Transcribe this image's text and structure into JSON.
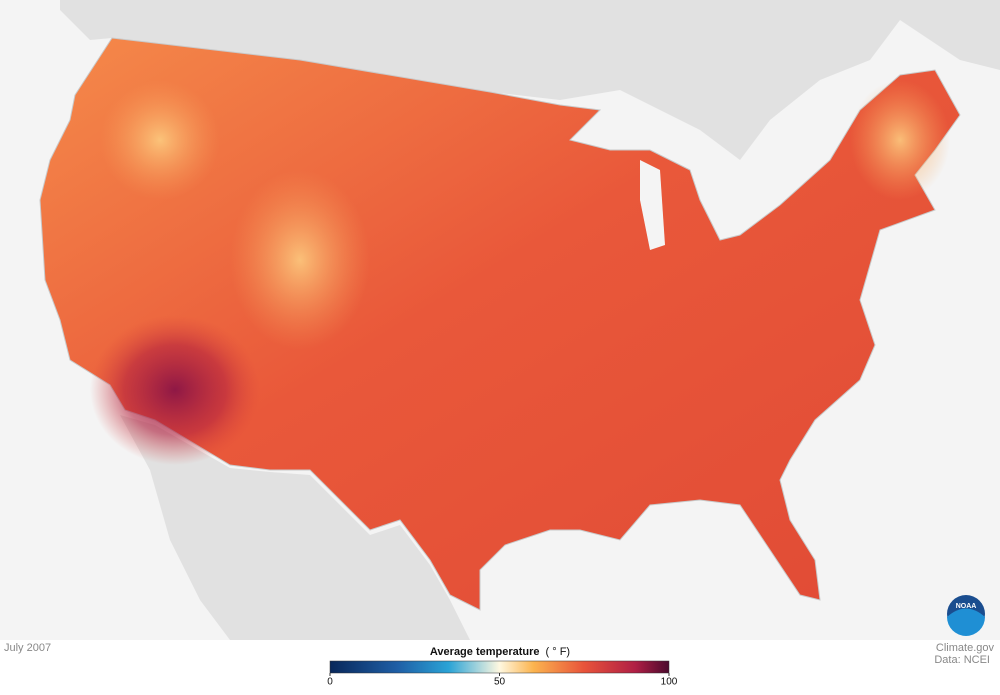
{
  "date": "July 2007",
  "legend": {
    "title": "Average temperature",
    "unit": "( ° F)",
    "lim": [
      0,
      100
    ],
    "ticks": [
      0,
      50,
      100
    ]
  },
  "credits": [
    "Climate.gov",
    "Data: NCEI"
  ],
  "logo": "NOAA"
}
